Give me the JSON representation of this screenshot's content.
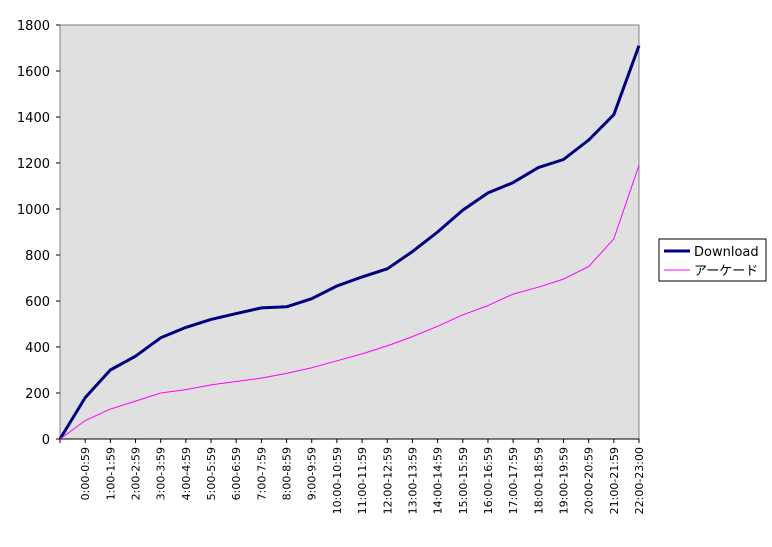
{
  "chart_data": {
    "type": "line",
    "title": "",
    "xlabel": "",
    "ylabel": "",
    "ylim": [
      0,
      1800
    ],
    "yticks": [
      0,
      200,
      400,
      600,
      800,
      1000,
      1200,
      1400,
      1600,
      1800
    ],
    "categories": [
      "",
      "0:00-0:59",
      "1:00-1:59",
      "2:00-2:59",
      "3:00-3:59",
      "4:00-4:59",
      "5:00-5:59",
      "6:00-6:59",
      "7:00-7:59",
      "8:00-8:59",
      "9:00-9:59",
      "10:00-10:59",
      "11:00-11:59",
      "12:00-12:59",
      "13:00-13:59",
      "14:00-14:59",
      "15:00-15:59",
      "16:00-16:59",
      "17:00-17:59",
      "18:00-18:59",
      "19:00-19:59",
      "20:00-20:59",
      "21:00-21:59",
      "22:00-23:00"
    ],
    "series": [
      {
        "name": "Download",
        "color": "#000080",
        "values": [
          0,
          180,
          300,
          360,
          440,
          485,
          520,
          545,
          570,
          575,
          610,
          665,
          705,
          740,
          815,
          900,
          995,
          1070,
          1115,
          1180,
          1215,
          1300,
          1410,
          1710
        ]
      },
      {
        "name": "アーケード",
        "color": "#ff00ff",
        "values": [
          0,
          80,
          130,
          165,
          200,
          215,
          235,
          250,
          265,
          285,
          310,
          340,
          370,
          405,
          445,
          490,
          540,
          580,
          630,
          660,
          695,
          750,
          870,
          1190
        ]
      }
    ],
    "plot_background": "#e0e0e0",
    "grid": false,
    "legend": "right"
  }
}
